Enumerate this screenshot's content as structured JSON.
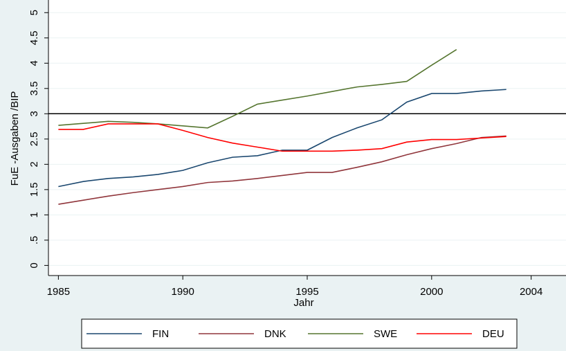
{
  "chart_data": {
    "type": "line",
    "xlabel": "Jahr",
    "ylabel": "FuE -Ausgaben /BIP",
    "x": [
      1985,
      1986,
      1987,
      1988,
      1989,
      1990,
      1991,
      1992,
      1993,
      1994,
      1995,
      1996,
      1997,
      1998,
      1999,
      2000,
      2001,
      2002,
      2003
    ],
    "series": [
      {
        "name": "FIN",
        "color": "#1a476f",
        "values": [
          1.56,
          1.66,
          1.72,
          1.75,
          1.8,
          1.88,
          2.03,
          2.14,
          2.17,
          2.28,
          2.28,
          2.53,
          2.72,
          2.88,
          3.23,
          3.4,
          3.4,
          3.45,
          3.48
        ]
      },
      {
        "name": "DNK",
        "color": "#90353b",
        "values": [
          1.21,
          1.29,
          1.37,
          1.44,
          1.5,
          1.56,
          1.64,
          1.67,
          1.72,
          1.78,
          1.84,
          1.84,
          1.94,
          2.05,
          2.19,
          2.31,
          2.41,
          2.53,
          2.56
        ]
      },
      {
        "name": "SWE",
        "color": "#55752f",
        "values": [
          2.77,
          2.81,
          2.85,
          2.83,
          2.8,
          2.76,
          2.72,
          2.95,
          3.19,
          3.27,
          3.35,
          3.44,
          3.53,
          3.58,
          3.64,
          3.96,
          4.27,
          null,
          null
        ]
      },
      {
        "name": "DEU",
        "color": "#ff0000",
        "values": [
          2.69,
          2.69,
          2.8,
          2.8,
          2.8,
          2.67,
          2.53,
          2.42,
          2.34,
          2.26,
          2.26,
          2.26,
          2.28,
          2.31,
          2.44,
          2.49,
          2.49,
          2.52,
          2.55
        ]
      }
    ],
    "xlim": [
      1984.6,
      2005.4
    ],
    "ylim": [
      -0.2,
      5.25
    ],
    "xticks": [
      1985,
      1990,
      1995,
      2000,
      2004
    ],
    "yticks": [
      0,
      {
        "value": 0.5,
        "label": ".5"
      },
      1,
      1.5,
      2,
      2.5,
      3,
      3.5,
      4,
      4.5,
      5
    ],
    "yline": 3,
    "grid": true,
    "legend": "bottom"
  }
}
